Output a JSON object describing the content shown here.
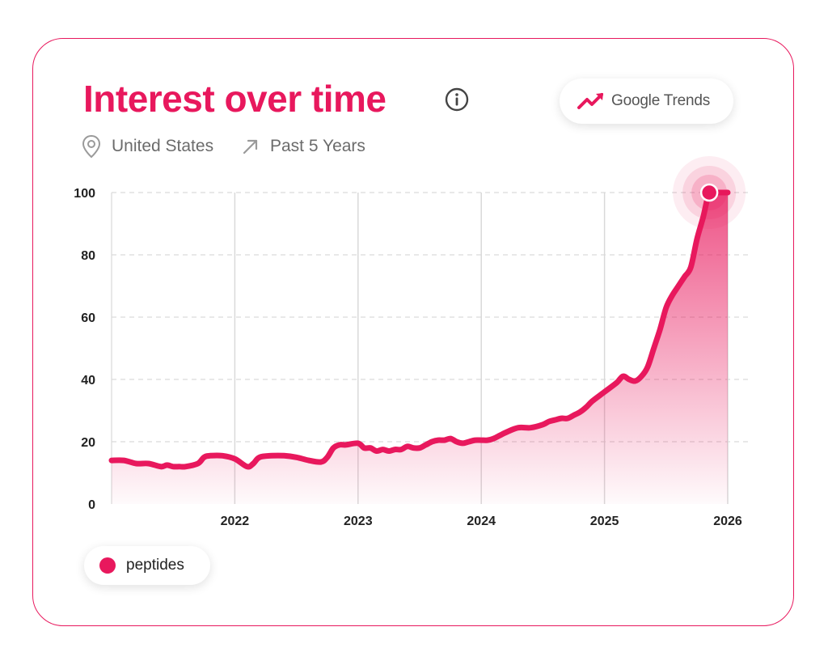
{
  "header": {
    "title": "Interest over time",
    "brand": "Google Trends",
    "location": "United States",
    "period": "Past 5 Years"
  },
  "icons": {
    "info": "info-icon",
    "trend": "trending-up-icon",
    "location": "map-pin-icon",
    "period": "arrow-up-right-icon"
  },
  "colors": {
    "accent": "#e8185d",
    "meta_text": "#6b6b6b",
    "grid": "#d9d9d9"
  },
  "legend": {
    "label": "peptides"
  },
  "chart_data": {
    "type": "area",
    "xlim": [
      2021.0,
      2026.0
    ],
    "ylim": [
      0,
      100
    ],
    "x_ticks": [
      2022,
      2023,
      2024,
      2025,
      2026
    ],
    "x_tick_labels": [
      "2022",
      "2023",
      "2024",
      "2025",
      "2026"
    ],
    "y_ticks": [
      0,
      20,
      40,
      60,
      80,
      100
    ],
    "y_tick_labels": [
      "0",
      "20",
      "40",
      "60",
      "80",
      "100"
    ],
    "grid": true,
    "highlight_peak": true,
    "series": [
      {
        "name": "peptides",
        "x": [
          2021.0,
          2021.1,
          2021.2,
          2021.3,
          2021.4,
          2021.45,
          2021.5,
          2021.55,
          2021.6,
          2021.7,
          2021.75,
          2021.8,
          2021.9,
          2022.0,
          2022.1,
          2022.15,
          2022.2,
          2022.3,
          2022.4,
          2022.5,
          2022.6,
          2022.7,
          2022.75,
          2022.8,
          2022.85,
          2022.9,
          2023.0,
          2023.05,
          2023.1,
          2023.15,
          2023.2,
          2023.25,
          2023.3,
          2023.35,
          2023.4,
          2023.45,
          2023.5,
          2023.55,
          2023.6,
          2023.65,
          2023.7,
          2023.75,
          2023.8,
          2023.85,
          2023.9,
          2023.95,
          2024.0,
          2024.05,
          2024.1,
          2024.15,
          2024.2,
          2024.3,
          2024.4,
          2024.5,
          2024.55,
          2024.6,
          2024.65,
          2024.7,
          2024.75,
          2024.8,
          2024.85,
          2024.9,
          2025.0,
          2025.1,
          2025.15,
          2025.2,
          2025.25,
          2025.3,
          2025.35,
          2025.4,
          2025.45,
          2025.5,
          2025.55,
          2025.6,
          2025.65,
          2025.7,
          2025.75,
          2025.8,
          2025.85,
          2025.9,
          2025.95,
          2026.0
        ],
        "values": [
          14,
          14,
          13,
          13,
          12,
          12.5,
          12,
          12,
          12,
          13,
          15,
          15.5,
          15.5,
          14.5,
          12,
          13,
          15,
          15.5,
          15.5,
          15,
          14,
          13.5,
          15,
          18,
          19,
          19,
          19.5,
          18,
          18,
          17,
          17.5,
          17,
          17.5,
          17.5,
          18.5,
          18,
          18,
          19,
          20,
          20.5,
          20.5,
          21,
          20,
          19.5,
          20,
          20.5,
          20.5,
          20.5,
          21,
          22,
          23,
          24.5,
          24.5,
          25.5,
          26.5,
          27,
          27.5,
          27.5,
          28.5,
          29.5,
          31,
          33,
          36,
          39,
          41,
          40,
          39.5,
          41,
          44,
          50,
          56,
          63,
          67,
          70,
          73,
          76,
          85,
          92,
          100,
          100,
          100,
          100
        ]
      }
    ]
  }
}
